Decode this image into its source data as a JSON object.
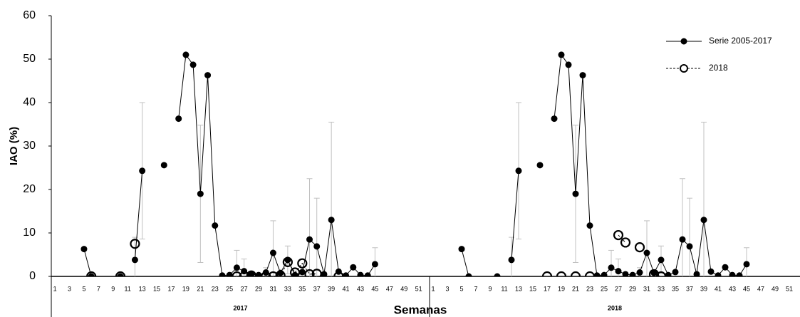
{
  "chart_data": [
    {
      "type": "line",
      "group": "2017",
      "ylabel": "IAO (%)",
      "xlabel": "Semanas",
      "ylim": [
        0,
        60
      ],
      "yticks": [
        0,
        10,
        20,
        30,
        40,
        50,
        60
      ],
      "categories": [
        "1",
        null,
        "3",
        null,
        "5",
        null,
        "7",
        null,
        "9",
        null,
        "11",
        null,
        "13",
        null,
        "15",
        null,
        "17",
        null,
        "19",
        null,
        "21",
        null,
        "23",
        null,
        "25",
        null,
        "27",
        null,
        "29",
        null,
        "31",
        null,
        "33",
        null,
        "35",
        null,
        "37",
        null,
        "39",
        null,
        "41",
        null,
        "43",
        null,
        "45",
        null,
        "47",
        null,
        "49",
        null,
        "51",
        null
      ],
      "series": [
        {
          "color": "#000000",
          "marker": "filled",
          "linestyle": "solid",
          "values": [
            null,
            null,
            null,
            null,
            6.3,
            0,
            null,
            null,
            null,
            0,
            null,
            3.8,
            24.3,
            null,
            null,
            25.6,
            null,
            36.3,
            51,
            48.7,
            19,
            46.3,
            11.7,
            0.2,
            0.3,
            2,
            1.2,
            0.5,
            0.3,
            0.9,
            5.4,
            0.8,
            3.8,
            0.3,
            1,
            8.5,
            6.9,
            0.5,
            13,
            1.1,
            0.2,
            2.1,
            0.3,
            0.2,
            2.8,
            null,
            null,
            null,
            null,
            null,
            null,
            null
          ],
          "errors": [
            null,
            null,
            null,
            null,
            null,
            null,
            null,
            null,
            null,
            null,
            null,
            5.2,
            15.7,
            null,
            null,
            null,
            null,
            null,
            null,
            null,
            15.8,
            null,
            null,
            null,
            null,
            4,
            2.8,
            null,
            null,
            1.1,
            7.4,
            null,
            3.2,
            null,
            null,
            14,
            11.1,
            null,
            22.5,
            null,
            null,
            null,
            null,
            null,
            3.8,
            null,
            null,
            null,
            null,
            null,
            null,
            null
          ],
          "error_color": "#c0c0c0"
        },
        {
          "color": "#000000",
          "marker": "open",
          "linestyle": "dashed",
          "values": [
            null,
            null,
            null,
            null,
            null,
            0,
            null,
            null,
            null,
            0,
            null,
            7.5,
            null,
            null,
            null,
            null,
            null,
            null,
            null,
            null,
            null,
            null,
            null,
            null,
            null,
            0,
            0,
            0.2,
            null,
            0,
            0,
            0.2,
            3.3,
            0.9,
            3,
            0.5,
            0.6,
            null,
            null,
            0,
            null,
            null,
            null,
            null,
            null,
            null,
            null,
            null,
            null,
            null,
            null,
            null
          ]
        }
      ]
    },
    {
      "type": "line",
      "group": "2018",
      "categories": [
        "1",
        null,
        "3",
        null,
        "5",
        null,
        "7",
        null,
        "9",
        null,
        "11",
        null,
        "13",
        null,
        "15",
        null,
        "17",
        null,
        "19",
        null,
        "21",
        null,
        "23",
        null,
        "25",
        null,
        "27",
        null,
        "29",
        null,
        "31",
        null,
        "33",
        null,
        "35",
        null,
        "37",
        null,
        "39",
        null,
        "41",
        null,
        "43",
        null,
        "45",
        null,
        "47",
        null,
        "49",
        null,
        "51",
        null
      ],
      "series": [
        {
          "name": "Serie 2005-2017",
          "color": "#000000",
          "marker": "filled",
          "linestyle": "solid",
          "values": [
            null,
            null,
            null,
            null,
            6.3,
            0,
            null,
            null,
            null,
            0,
            null,
            3.8,
            24.3,
            null,
            null,
            25.6,
            null,
            36.3,
            51,
            48.7,
            19,
            46.3,
            11.7,
            0.2,
            0.3,
            2,
            1.2,
            0.5,
            0.3,
            0.9,
            5.4,
            0.8,
            3.8,
            0.3,
            1,
            8.5,
            6.9,
            0.5,
            13,
            1.1,
            0.2,
            2.1,
            0.3,
            0.2,
            2.8,
            null,
            null,
            null,
            null,
            null,
            null,
            null
          ],
          "errors": [
            null,
            null,
            null,
            null,
            null,
            null,
            null,
            null,
            null,
            null,
            null,
            5.2,
            15.7,
            null,
            null,
            null,
            null,
            null,
            null,
            null,
            15.8,
            null,
            null,
            null,
            null,
            4,
            2.8,
            null,
            null,
            1.1,
            7.4,
            null,
            3.2,
            null,
            null,
            14,
            11.1,
            null,
            22.5,
            null,
            null,
            null,
            null,
            null,
            3.8,
            null,
            null,
            null,
            null,
            null,
            null,
            null
          ],
          "error_color": "#c0c0c0"
        },
        {
          "name": "2018",
          "color": "#000000",
          "marker": "open",
          "linestyle": "dashed",
          "values": [
            null,
            null,
            null,
            null,
            null,
            null,
            null,
            null,
            null,
            null,
            null,
            null,
            null,
            null,
            null,
            null,
            0,
            null,
            0,
            null,
            0,
            null,
            0,
            null,
            null,
            null,
            9.5,
            7.8,
            null,
            6.7,
            null,
            0.5,
            0,
            null,
            null,
            null,
            null,
            null,
            null,
            null,
            null,
            null,
            null,
            null,
            null,
            null,
            null,
            null,
            null,
            null,
            null,
            null
          ]
        }
      ]
    }
  ]
}
